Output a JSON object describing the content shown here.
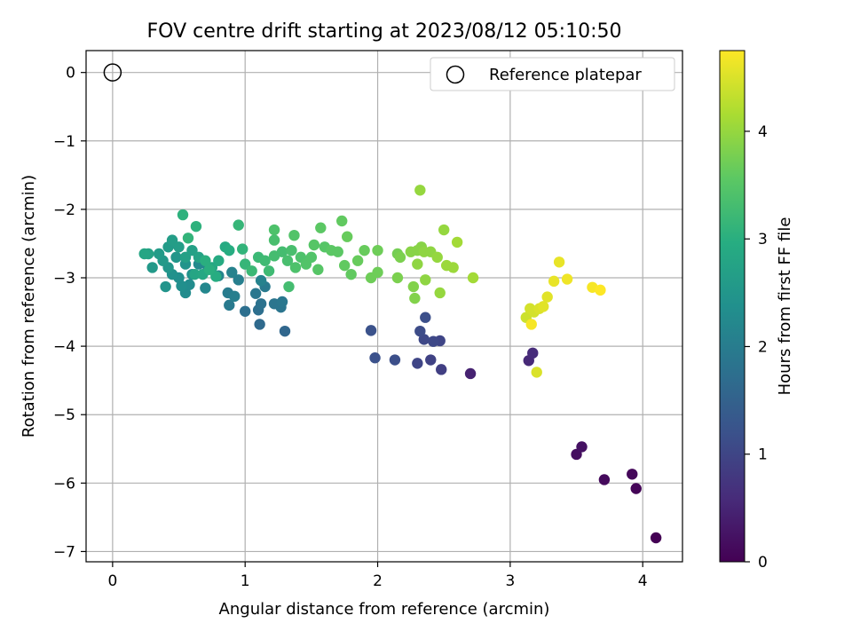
{
  "chart_data": {
    "type": "scatter",
    "title": "FOV centre drift starting at 2023/08/12 05:10:50",
    "xlabel": "Angular distance from reference (arcmin)",
    "ylabel": "Rotation from reference (arcmin)",
    "xlim": [
      -0.2,
      4.3
    ],
    "ylim": [
      -7.15,
      0.32
    ],
    "xticks": [
      0,
      1,
      2,
      3,
      4
    ],
    "yticks": [
      0,
      -1,
      -2,
      -3,
      -4,
      -5,
      -6,
      -7
    ],
    "grid": true,
    "legend": {
      "position": "top-right",
      "entries": [
        "Reference platepar"
      ]
    },
    "reference_point": {
      "name": "Reference platepar",
      "x": 0,
      "y": 0,
      "marker": "open-circle"
    },
    "colorbar": {
      "label": "Hours from first FF file",
      "min": 0,
      "max": 4.75,
      "ticks": [
        0,
        1,
        2,
        3,
        4
      ],
      "colormap": "viridis"
    },
    "series": [
      {
        "points": [
          {
            "x": 4.1,
            "y": -6.8,
            "h": 0.0
          },
          {
            "x": 3.95,
            "y": -6.08,
            "h": 0.05
          },
          {
            "x": 3.92,
            "y": -5.87,
            "h": 0.1
          },
          {
            "x": 3.71,
            "y": -5.95,
            "h": 0.12
          },
          {
            "x": 3.5,
            "y": -5.58,
            "h": 0.18
          },
          {
            "x": 3.54,
            "y": -5.47,
            "h": 0.22
          },
          {
            "x": 2.7,
            "y": -4.4,
            "h": 0.45
          },
          {
            "x": 3.14,
            "y": -4.21,
            "h": 0.55
          },
          {
            "x": 3.17,
            "y": -4.1,
            "h": 0.6
          },
          {
            "x": 2.48,
            "y": -4.34,
            "h": 0.9
          },
          {
            "x": 2.4,
            "y": -4.2,
            "h": 0.95
          },
          {
            "x": 2.3,
            "y": -4.25,
            "h": 1.0
          },
          {
            "x": 2.47,
            "y": -3.92,
            "h": 1.0
          },
          {
            "x": 2.42,
            "y": -3.93,
            "h": 1.05
          },
          {
            "x": 2.35,
            "y": -3.9,
            "h": 1.05
          },
          {
            "x": 2.32,
            "y": -3.78,
            "h": 1.1
          },
          {
            "x": 2.36,
            "y": -3.58,
            "h": 1.15
          },
          {
            "x": 2.13,
            "y": -4.2,
            "h": 1.15
          },
          {
            "x": 1.98,
            "y": -4.17,
            "h": 1.18
          },
          {
            "x": 1.95,
            "y": -3.77,
            "h": 1.2
          },
          {
            "x": 1.3,
            "y": -3.78,
            "h": 1.6
          },
          {
            "x": 1.11,
            "y": -3.68,
            "h": 1.65
          },
          {
            "x": 1.0,
            "y": -3.49,
            "h": 1.75
          },
          {
            "x": 1.1,
            "y": -3.47,
            "h": 1.75
          },
          {
            "x": 1.12,
            "y": -3.38,
            "h": 1.8
          },
          {
            "x": 1.27,
            "y": -3.43,
            "h": 1.85
          },
          {
            "x": 1.22,
            "y": -3.38,
            "h": 1.85
          },
          {
            "x": 1.28,
            "y": -3.35,
            "h": 1.9
          },
          {
            "x": 1.08,
            "y": -3.23,
            "h": 1.9
          },
          {
            "x": 1.15,
            "y": -3.13,
            "h": 1.95
          },
          {
            "x": 0.88,
            "y": -3.4,
            "h": 1.95
          },
          {
            "x": 0.87,
            "y": -3.22,
            "h": 2.0
          },
          {
            "x": 0.92,
            "y": -3.27,
            "h": 2.05
          },
          {
            "x": 0.95,
            "y": -3.03,
            "h": 2.05
          },
          {
            "x": 0.9,
            "y": -2.92,
            "h": 2.1
          },
          {
            "x": 1.12,
            "y": -3.04,
            "h": 2.1
          },
          {
            "x": 0.8,
            "y": -2.97,
            "h": 2.15
          },
          {
            "x": 0.7,
            "y": -3.15,
            "h": 2.2
          },
          {
            "x": 0.72,
            "y": -2.85,
            "h": 2.2
          },
          {
            "x": 0.65,
            "y": -2.8,
            "h": 2.25
          },
          {
            "x": 0.55,
            "y": -3.22,
            "h": 2.3
          },
          {
            "x": 0.58,
            "y": -3.1,
            "h": 2.3
          },
          {
            "x": 0.52,
            "y": -3.12,
            "h": 2.35
          },
          {
            "x": 0.5,
            "y": -3.0,
            "h": 2.35
          },
          {
            "x": 0.6,
            "y": -2.95,
            "h": 2.4
          },
          {
            "x": 0.45,
            "y": -2.95,
            "h": 2.4
          },
          {
            "x": 0.4,
            "y": -3.13,
            "h": 2.45
          },
          {
            "x": 0.55,
            "y": -2.8,
            "h": 2.45
          },
          {
            "x": 0.48,
            "y": -2.7,
            "h": 2.5
          },
          {
            "x": 0.42,
            "y": -2.85,
            "h": 2.5
          },
          {
            "x": 0.38,
            "y": -2.75,
            "h": 2.55
          },
          {
            "x": 0.3,
            "y": -2.85,
            "h": 2.55
          },
          {
            "x": 0.35,
            "y": -2.65,
            "h": 2.6
          },
          {
            "x": 0.42,
            "y": -2.55,
            "h": 2.6
          },
          {
            "x": 0.45,
            "y": -2.45,
            "h": 2.65
          },
          {
            "x": 0.5,
            "y": -2.55,
            "h": 2.65
          },
          {
            "x": 0.55,
            "y": -2.7,
            "h": 2.7
          },
          {
            "x": 0.6,
            "y": -2.6,
            "h": 2.7
          },
          {
            "x": 0.65,
            "y": -2.7,
            "h": 2.75
          },
          {
            "x": 0.27,
            "y": -2.65,
            "h": 2.75
          },
          {
            "x": 0.24,
            "y": -2.65,
            "h": 2.8
          },
          {
            "x": 0.62,
            "y": -2.95,
            "h": 2.8
          },
          {
            "x": 0.68,
            "y": -2.95,
            "h": 2.85
          },
          {
            "x": 0.75,
            "y": -2.85,
            "h": 2.85
          },
          {
            "x": 0.8,
            "y": -2.75,
            "h": 2.9
          },
          {
            "x": 0.85,
            "y": -2.55,
            "h": 2.9
          },
          {
            "x": 0.88,
            "y": -2.6,
            "h": 2.95
          },
          {
            "x": 0.78,
            "y": -2.98,
            "h": 2.95
          },
          {
            "x": 0.7,
            "y": -2.75,
            "h": 3.0
          },
          {
            "x": 0.73,
            "y": -2.88,
            "h": 3.0
          },
          {
            "x": 0.53,
            "y": -2.08,
            "h": 3.05
          },
          {
            "x": 0.63,
            "y": -2.25,
            "h": 3.05
          },
          {
            "x": 0.57,
            "y": -2.42,
            "h": 3.1
          },
          {
            "x": 0.95,
            "y": -2.23,
            "h": 3.15
          },
          {
            "x": 0.98,
            "y": -2.58,
            "h": 3.1
          },
          {
            "x": 1.0,
            "y": -2.8,
            "h": 3.15
          },
          {
            "x": 1.05,
            "y": -2.9,
            "h": 3.2
          },
          {
            "x": 1.1,
            "y": -2.7,
            "h": 3.2
          },
          {
            "x": 1.15,
            "y": -2.75,
            "h": 3.25
          },
          {
            "x": 1.18,
            "y": -2.9,
            "h": 3.25
          },
          {
            "x": 1.22,
            "y": -2.68,
            "h": 3.3
          },
          {
            "x": 1.28,
            "y": -2.62,
            "h": 3.3
          },
          {
            "x": 1.32,
            "y": -2.75,
            "h": 3.35
          },
          {
            "x": 1.35,
            "y": -2.6,
            "h": 3.35
          },
          {
            "x": 1.38,
            "y": -2.85,
            "h": 3.4
          },
          {
            "x": 1.42,
            "y": -2.7,
            "h": 3.4
          },
          {
            "x": 1.46,
            "y": -2.8,
            "h": 3.45
          },
          {
            "x": 1.5,
            "y": -2.7,
            "h": 3.45
          },
          {
            "x": 1.55,
            "y": -2.88,
            "h": 3.5
          },
          {
            "x": 1.6,
            "y": -2.55,
            "h": 3.5
          },
          {
            "x": 1.65,
            "y": -2.6,
            "h": 3.55
          },
          {
            "x": 1.7,
            "y": -2.62,
            "h": 3.55
          },
          {
            "x": 1.75,
            "y": -2.82,
            "h": 3.6
          },
          {
            "x": 1.8,
            "y": -2.95,
            "h": 3.6
          },
          {
            "x": 1.85,
            "y": -2.75,
            "h": 3.65
          },
          {
            "x": 1.9,
            "y": -2.6,
            "h": 3.65
          },
          {
            "x": 1.95,
            "y": -3.0,
            "h": 3.7
          },
          {
            "x": 2.0,
            "y": -2.92,
            "h": 3.7
          },
          {
            "x": 1.22,
            "y": -2.3,
            "h": 3.4
          },
          {
            "x": 1.22,
            "y": -2.45,
            "h": 3.35
          },
          {
            "x": 1.37,
            "y": -2.38,
            "h": 3.45
          },
          {
            "x": 1.52,
            "y": -2.52,
            "h": 3.5
          },
          {
            "x": 1.57,
            "y": -2.27,
            "h": 3.55
          },
          {
            "x": 1.33,
            "y": -3.13,
            "h": 3.3
          },
          {
            "x": 1.73,
            "y": -2.17,
            "h": 3.6
          },
          {
            "x": 1.77,
            "y": -2.4,
            "h": 3.65
          },
          {
            "x": 2.0,
            "y": -2.6,
            "h": 3.7
          },
          {
            "x": 2.15,
            "y": -2.65,
            "h": 3.75
          },
          {
            "x": 2.17,
            "y": -2.7,
            "h": 3.8
          },
          {
            "x": 2.15,
            "y": -3.0,
            "h": 3.8
          },
          {
            "x": 2.27,
            "y": -3.13,
            "h": 3.85
          },
          {
            "x": 2.28,
            "y": -3.3,
            "h": 3.85
          },
          {
            "x": 2.3,
            "y": -2.6,
            "h": 3.9
          },
          {
            "x": 2.33,
            "y": -2.55,
            "h": 3.9
          },
          {
            "x": 2.35,
            "y": -2.62,
            "h": 3.95
          },
          {
            "x": 2.36,
            "y": -3.03,
            "h": 3.95
          },
          {
            "x": 2.4,
            "y": -2.62,
            "h": 3.95
          },
          {
            "x": 2.45,
            "y": -2.7,
            "h": 4.0
          },
          {
            "x": 2.47,
            "y": -3.22,
            "h": 4.0
          },
          {
            "x": 2.5,
            "y": -2.3,
            "h": 4.0
          },
          {
            "x": 2.52,
            "y": -2.82,
            "h": 4.05
          },
          {
            "x": 2.57,
            "y": -2.85,
            "h": 4.05
          },
          {
            "x": 2.6,
            "y": -2.48,
            "h": 4.1
          },
          {
            "x": 2.72,
            "y": -3.0,
            "h": 4.1
          },
          {
            "x": 2.32,
            "y": -1.72,
            "h": 4.0
          },
          {
            "x": 2.3,
            "y": -2.8,
            "h": 3.95
          },
          {
            "x": 2.25,
            "y": -2.62,
            "h": 3.9
          },
          {
            "x": 3.12,
            "y": -3.58,
            "h": 4.4
          },
          {
            "x": 3.15,
            "y": -3.45,
            "h": 4.45
          },
          {
            "x": 3.18,
            "y": -3.5,
            "h": 4.45
          },
          {
            "x": 3.2,
            "y": -4.38,
            "h": 4.5
          },
          {
            "x": 3.22,
            "y": -3.45,
            "h": 4.5
          },
          {
            "x": 3.25,
            "y": -3.42,
            "h": 4.55
          },
          {
            "x": 3.28,
            "y": -3.28,
            "h": 4.55
          },
          {
            "x": 3.33,
            "y": -3.05,
            "h": 4.6
          },
          {
            "x": 3.37,
            "y": -2.77,
            "h": 4.6
          },
          {
            "x": 3.43,
            "y": -3.02,
            "h": 4.65
          },
          {
            "x": 3.62,
            "y": -3.14,
            "h": 4.7
          },
          {
            "x": 3.68,
            "y": -3.18,
            "h": 4.75
          },
          {
            "x": 3.16,
            "y": -3.68,
            "h": 4.7
          }
        ]
      }
    ]
  }
}
